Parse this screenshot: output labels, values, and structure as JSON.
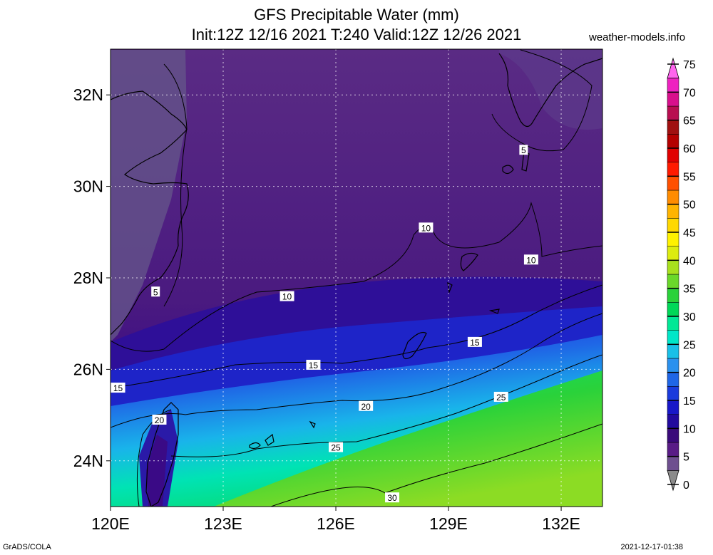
{
  "header": {
    "title": "GFS Precipitable Water (mm)",
    "subtitle": "Init:12Z 12/16 2021 T:240 Valid:12Z 12/26 2021",
    "site": "weather-models.info"
  },
  "map": {
    "projection": "latlon",
    "lon_range": [
      120,
      133.1
    ],
    "lat_range": [
      23,
      33
    ],
    "lon_ticks": [
      120,
      123,
      126,
      129,
      132
    ],
    "lon_tick_labels": [
      "120E",
      "123E",
      "126E",
      "129E",
      "132E"
    ],
    "lat_ticks": [
      24,
      26,
      28,
      30,
      32
    ],
    "lat_tick_labels": [
      "24N",
      "26N",
      "28N",
      "30N",
      "32N"
    ],
    "gridlines": true,
    "coastlines": true,
    "contour_labels": [
      {
        "text": "5",
        "lon": 131.0,
        "lat": 30.8
      },
      {
        "text": "5",
        "lon": 121.2,
        "lat": 27.7
      },
      {
        "text": "10",
        "lon": 128.4,
        "lat": 29.1
      },
      {
        "text": "10",
        "lon": 131.2,
        "lat": 28.4
      },
      {
        "text": "10",
        "lon": 124.7,
        "lat": 27.6
      },
      {
        "text": "15",
        "lon": 129.7,
        "lat": 26.6
      },
      {
        "text": "15",
        "lon": 125.4,
        "lat": 26.1
      },
      {
        "text": "15",
        "lon": 120.2,
        "lat": 25.6
      },
      {
        "text": "20",
        "lon": 121.3,
        "lat": 24.9
      },
      {
        "text": "20",
        "lon": 126.8,
        "lat": 25.2
      },
      {
        "text": "25",
        "lon": 130.4,
        "lat": 25.4
      },
      {
        "text": "25",
        "lon": 126.0,
        "lat": 24.3
      },
      {
        "text": "30",
        "lon": 127.5,
        "lat": 23.2
      }
    ]
  },
  "colorbar": {
    "labels": [
      "0",
      "5",
      "10",
      "15",
      "20",
      "25",
      "30",
      "35",
      "40",
      "45",
      "50",
      "55",
      "60",
      "65",
      "70",
      "75"
    ],
    "colors": [
      "#8b8b8b",
      "#6e4f8f",
      "#591c86",
      "#3a0a7a",
      "#220a9e",
      "#1818c8",
      "#1a3bdc",
      "#1f66e6",
      "#2a91ee",
      "#19c0e8",
      "#00e6c8",
      "#00e896",
      "#00d858",
      "#2ad23a",
      "#6ad82a",
      "#a8e01e",
      "#dcec10",
      "#fff200",
      "#ffd800",
      "#ffb400",
      "#ff8c00",
      "#ff5000",
      "#ff1a00",
      "#e00000",
      "#b40000",
      "#a01010",
      "#b80e50",
      "#d8108c",
      "#ee22c0",
      "#ff66ee"
    ]
  },
  "footer": {
    "left": "GrADS/COLA",
    "right": "2021-12-17-01:38"
  }
}
